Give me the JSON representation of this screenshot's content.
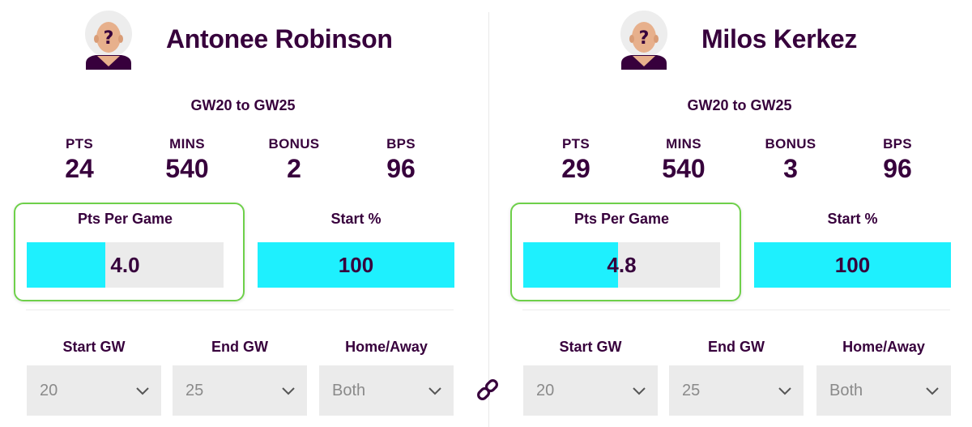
{
  "players": [
    {
      "name": "Antonee Robinson",
      "range": "GW20 to GW25",
      "stats": [
        {
          "label": "PTS",
          "value": "24"
        },
        {
          "label": "MINS",
          "value": "540"
        },
        {
          "label": "BONUS",
          "value": "2"
        },
        {
          "label": "BPS",
          "value": "96"
        }
      ],
      "ppg": {
        "label": "Pts Per Game",
        "value": "4.0",
        "fill_fraction": 0.4
      },
      "start": {
        "label": "Start %",
        "value": "100",
        "fill_fraction": 1.0
      },
      "filters": {
        "start_gw": {
          "label": "Start GW",
          "value": "20"
        },
        "end_gw": {
          "label": "End GW",
          "value": "25"
        },
        "home_away": {
          "label": "Home/Away",
          "value": "Both"
        }
      }
    },
    {
      "name": "Milos Kerkez",
      "range": "GW20 to GW25",
      "stats": [
        {
          "label": "PTS",
          "value": "29"
        },
        {
          "label": "MINS",
          "value": "540"
        },
        {
          "label": "BONUS",
          "value": "3"
        },
        {
          "label": "BPS",
          "value": "96"
        }
      ],
      "ppg": {
        "label": "Pts Per Game",
        "value": "4.8",
        "fill_fraction": 0.48
      },
      "start": {
        "label": "Start %",
        "value": "100",
        "fill_fraction": 1.0
      },
      "filters": {
        "start_gw": {
          "label": "Start GW",
          "value": "20"
        },
        "end_gw": {
          "label": "End GW",
          "value": "25"
        },
        "home_away": {
          "label": "Home/Away",
          "value": "Both"
        }
      }
    }
  ],
  "icons": {
    "avatar": "unknown-player-icon",
    "chevron": "chevron-down-icon",
    "link": "link-icon"
  },
  "colors": {
    "primary_text": "#37003c",
    "meter_fill": "#1ef0fe",
    "meter_track": "#ebebeb",
    "highlight_border": "#6ed04a"
  }
}
